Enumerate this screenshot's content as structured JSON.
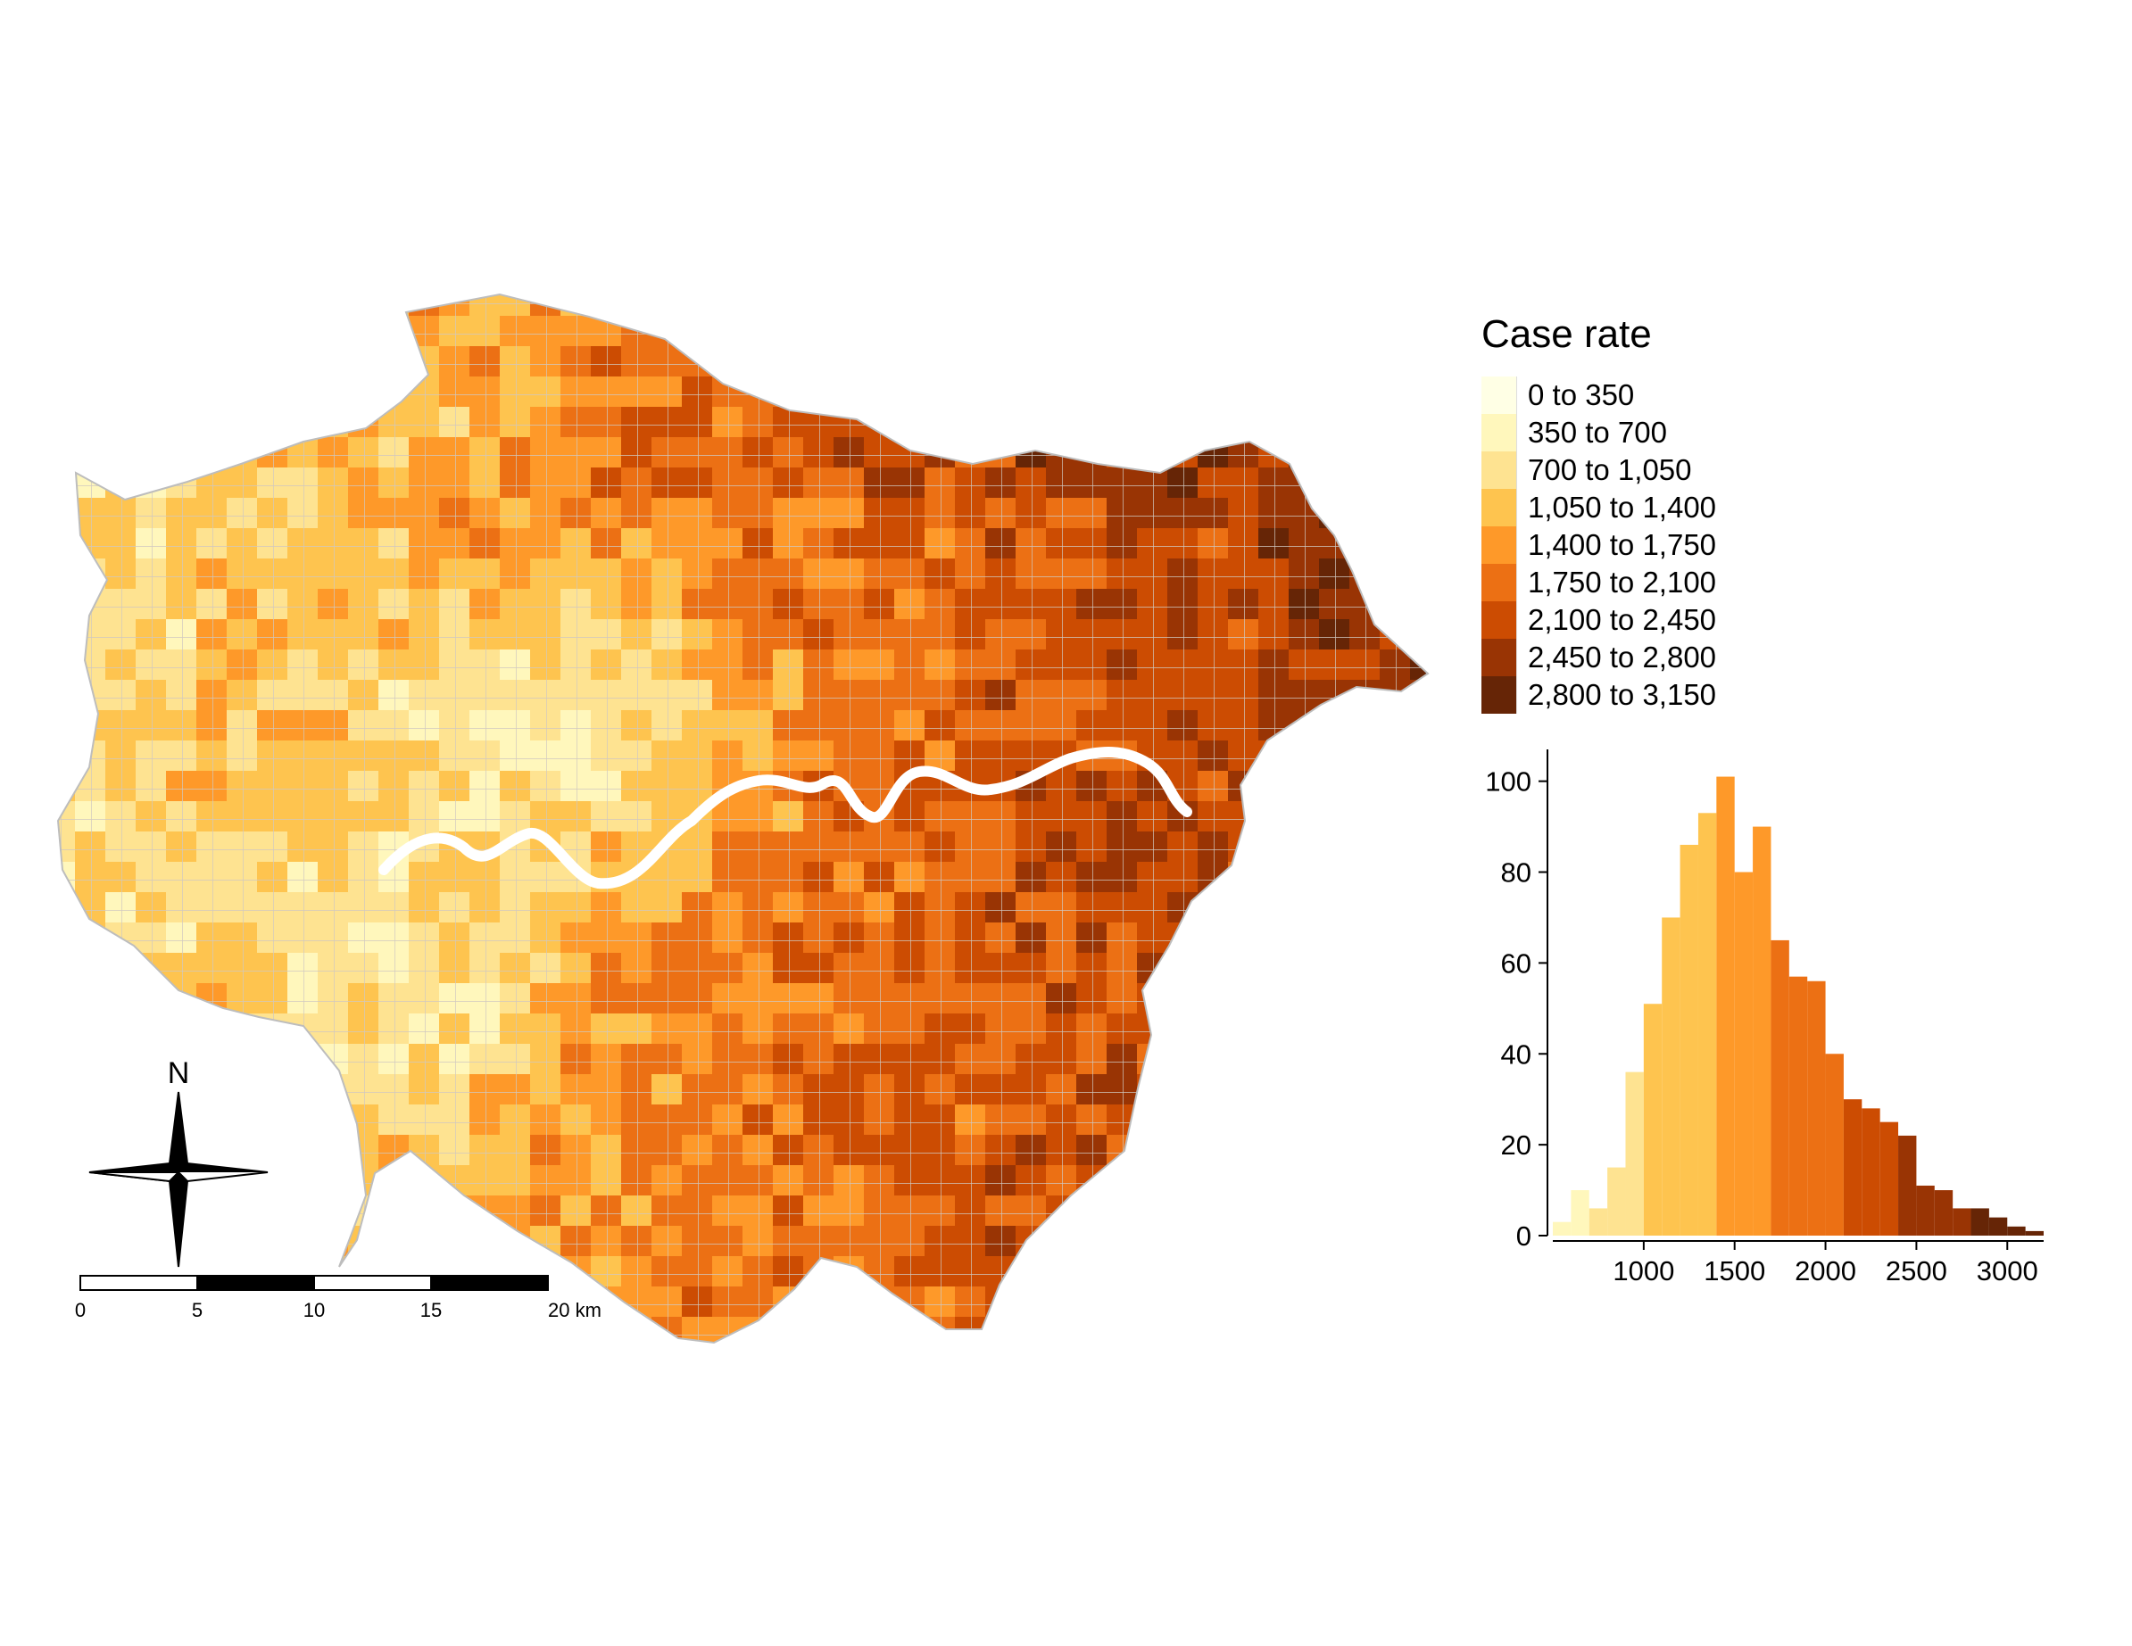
{
  "legend": {
    "title": "Case rate",
    "items": [
      {
        "label": "0 to 350",
        "color": "#ffffe5"
      },
      {
        "label": "350 to 700",
        "color": "#fff7bc"
      },
      {
        "label": "700 to 1,050",
        "color": "#fee391"
      },
      {
        "label": "1,050 to 1,400",
        "color": "#fec44f"
      },
      {
        "label": "1,400 to 1,750",
        "color": "#fe9929"
      },
      {
        "label": "1,750 to 2,100",
        "color": "#ec7014"
      },
      {
        "label": "2,100 to 2,450",
        "color": "#cc4c02"
      },
      {
        "label": "2,450 to 2,800",
        "color": "#993404"
      },
      {
        "label": "2,800 to 3,150",
        "color": "#662506"
      }
    ]
  },
  "compass": {
    "north_label": "N"
  },
  "scale_bar": {
    "ticks": [
      "0",
      "5",
      "10",
      "15",
      "20 km"
    ]
  },
  "chart_data": {
    "type": "bar",
    "subtype": "histogram",
    "bin_width": 100,
    "bins_start": [
      500,
      600,
      700,
      800,
      900,
      1000,
      1100,
      1200,
      1300,
      1400,
      1500,
      1600,
      1700,
      1800,
      1900,
      2000,
      2100,
      2200,
      2300,
      2400,
      2500,
      2600,
      2700,
      2800,
      2900,
      3000,
      3100
    ],
    "values": [
      3,
      10,
      6,
      15,
      36,
      51,
      70,
      86,
      93,
      101,
      80,
      90,
      65,
      57,
      56,
      40,
      30,
      28,
      25,
      22,
      11,
      10,
      6,
      6,
      4,
      2,
      1
    ],
    "x_ticks": [
      1000,
      1500,
      2000,
      2500,
      3000
    ],
    "y_ticks": [
      0,
      20,
      40,
      60,
      80,
      100
    ],
    "xlim": [
      500,
      3200
    ],
    "ylim": [
      0,
      107
    ]
  },
  "map": {
    "region_colors_count": 9,
    "river": "Thames"
  }
}
